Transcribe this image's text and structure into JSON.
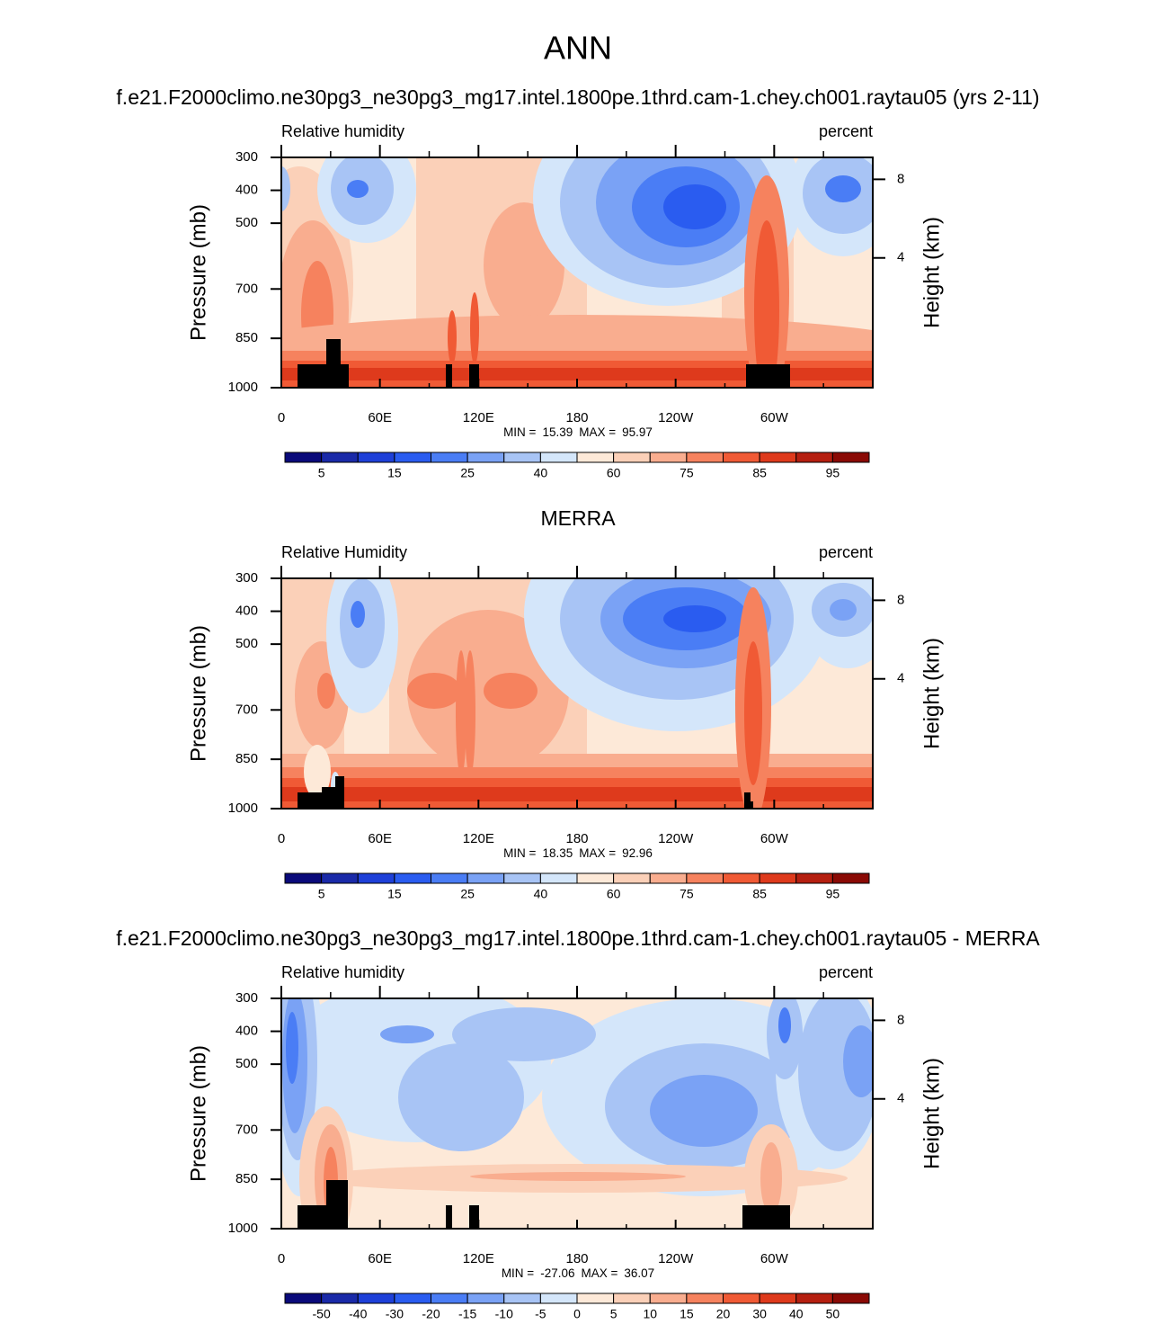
{
  "title": "ANN",
  "chart_data": [
    {
      "type": "contour",
      "title": "f.e21.F2000climo.ne30pg3_ne30pg3_mg17.intel.1800pe.1thrd.cam-1.chey.ch001.raytau05 (yrs 2-11)",
      "left_string": "Relative humidity",
      "right_string": "percent",
      "ylabel": "Pressure (mb)",
      "y2label": "Height (km)",
      "xlim": [
        0,
        360
      ],
      "xticks": [
        0,
        {
          "value": 60,
          "label": "60E"
        },
        {
          "value": 120,
          "label": "120E"
        },
        180,
        {
          "value": 240,
          "label": "120W"
        },
        {
          "value": 300,
          "label": "60W"
        }
      ],
      "ylim": [
        1000,
        300
      ],
      "yticks": [
        300,
        400,
        500,
        700,
        850,
        1000
      ],
      "y2lim": [
        0,
        9.6
      ],
      "y2ticks": [
        4,
        8
      ],
      "min_label": "MIN =",
      "min": 15.39,
      "max_label": "MAX =",
      "max": 95.97,
      "colorbar": {
        "colors": [
          "#0a0a7a",
          "#1a2aa8",
          "#1e40d8",
          "#2a5cf0",
          "#4a7df5",
          "#7aa2f5",
          "#a8c4f5",
          "#d4e6fa",
          "#fde9d8",
          "#fbd0b8",
          "#f9ad8f",
          "#f6825e",
          "#f05a35",
          "#de3a1c",
          "#b51f10",
          "#8a0a05"
        ],
        "ticks": [
          5,
          15,
          25,
          40,
          60,
          75,
          85,
          95
        ]
      }
    },
    {
      "type": "contour",
      "title": "MERRA",
      "left_string": "Relative Humidity",
      "right_string": "percent",
      "ylabel": "Pressure (mb)",
      "y2label": "Height (km)",
      "xlim": [
        0,
        360
      ],
      "xticks": [
        0,
        {
          "value": 60,
          "label": "60E"
        },
        {
          "value": 120,
          "label": "120E"
        },
        180,
        {
          "value": 240,
          "label": "120W"
        },
        {
          "value": 300,
          "label": "60W"
        }
      ],
      "ylim": [
        1000,
        300
      ],
      "yticks": [
        300,
        400,
        500,
        700,
        850,
        1000
      ],
      "y2lim": [
        0,
        9.6
      ],
      "y2ticks": [
        4,
        8
      ],
      "min_label": "MIN =",
      "min": 18.35,
      "max_label": "MAX =",
      "max": 92.96,
      "colorbar": {
        "colors": [
          "#0a0a7a",
          "#1a2aa8",
          "#1e40d8",
          "#2a5cf0",
          "#4a7df5",
          "#7aa2f5",
          "#a8c4f5",
          "#d4e6fa",
          "#fde9d8",
          "#fbd0b8",
          "#f9ad8f",
          "#f6825e",
          "#f05a35",
          "#de3a1c",
          "#b51f10",
          "#8a0a05"
        ],
        "ticks": [
          5,
          15,
          25,
          40,
          60,
          75,
          85,
          95
        ]
      }
    },
    {
      "type": "contour",
      "title": "f.e21.F2000climo.ne30pg3_ne30pg3_mg17.intel.1800pe.1thrd.cam-1.chey.ch001.raytau05 - MERRA",
      "left_string": "Relative humidity",
      "right_string": "percent",
      "ylabel": "Pressure (mb)",
      "y2label": "Height (km)",
      "xlim": [
        0,
        360
      ],
      "xticks": [
        0,
        {
          "value": 60,
          "label": "60E"
        },
        {
          "value": 120,
          "label": "120E"
        },
        180,
        {
          "value": 240,
          "label": "120W"
        },
        {
          "value": 300,
          "label": "60W"
        }
      ],
      "ylim": [
        1000,
        300
      ],
      "yticks": [
        300,
        400,
        500,
        700,
        850,
        1000
      ],
      "y2lim": [
        0,
        9.6
      ],
      "y2ticks": [
        4,
        8
      ],
      "min_label": "MIN =",
      "min": -27.06,
      "max_label": "MAX =",
      "max": 36.07,
      "colorbar": {
        "colors": [
          "#0a0a7a",
          "#1a2aa8",
          "#1e40d8",
          "#2a5cf0",
          "#4a7df5",
          "#7aa2f5",
          "#a8c4f5",
          "#d4e6fa",
          "#fde9d8",
          "#fbd0b8",
          "#f9ad8f",
          "#f6825e",
          "#f05a35",
          "#de3a1c",
          "#b51f10",
          "#8a0a05"
        ],
        "ticks": [
          -50,
          -40,
          -30,
          -20,
          -15,
          -10,
          -5,
          0,
          5,
          10,
          15,
          20,
          30,
          40,
          50
        ]
      }
    }
  ]
}
